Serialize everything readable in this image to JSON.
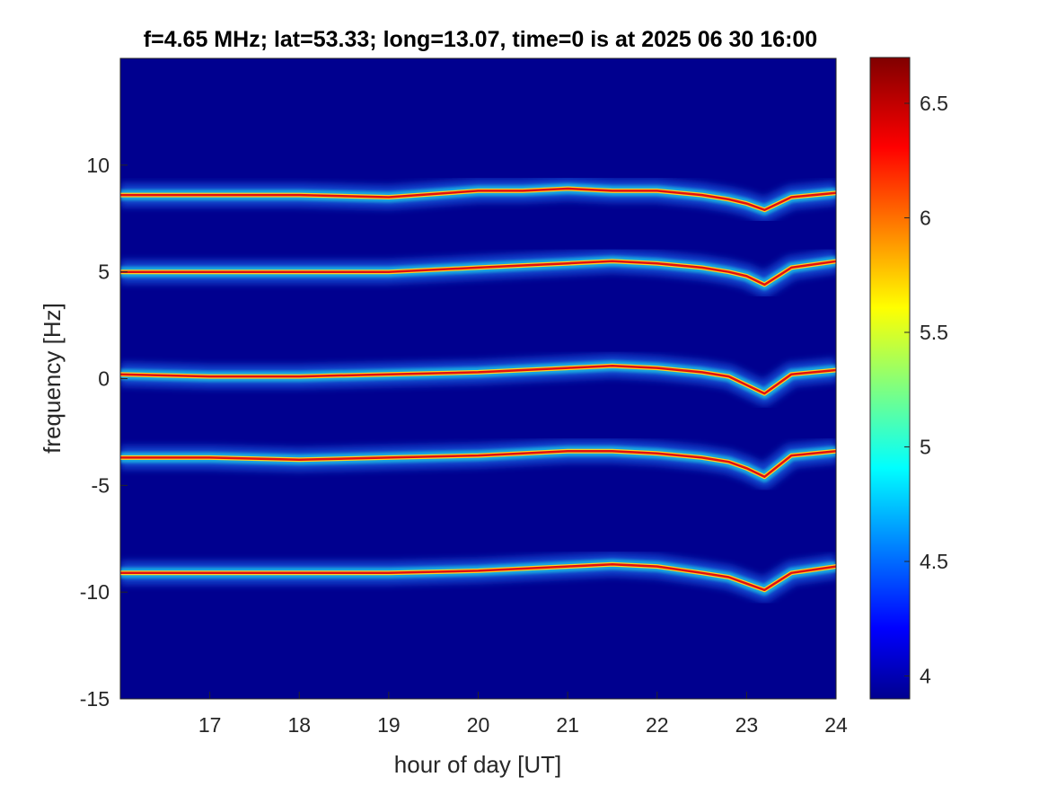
{
  "chart_data": {
    "type": "heatmap",
    "title": "f=4.65 MHz;  lat=53.33; long=13.07, time=0 is at 2025 06 30 16:00",
    "xlabel": "hour of day [UT]",
    "ylabel": "frequency [Hz]",
    "xlim": [
      16.0,
      24.0
    ],
    "ylim": [
      -15,
      15
    ],
    "x_ticks": [
      "17",
      "18",
      "19",
      "20",
      "21",
      "22",
      "23",
      "24"
    ],
    "y_ticks": [
      "10",
      "5",
      "0",
      "-5",
      "-10",
      "-15"
    ],
    "colorbar": {
      "range": [
        3.9,
        6.7
      ],
      "ticks": [
        "6.5",
        "6",
        "5.5",
        "5",
        "4.5",
        "4"
      ],
      "colormap": "jet"
    },
    "series": [
      {
        "x": [
          16.0,
          17.0,
          18.0,
          19.0,
          20.0,
          20.5,
          21.0,
          21.5,
          22.0,
          22.5,
          22.8,
          23.0,
          23.2,
          23.5,
          24.0
        ],
        "y": [
          8.6,
          8.6,
          8.6,
          8.5,
          8.8,
          8.8,
          8.9,
          8.8,
          8.8,
          8.6,
          8.4,
          8.2,
          7.9,
          8.5,
          8.7
        ]
      },
      {
        "x": [
          16.0,
          17.0,
          18.0,
          19.0,
          20.0,
          20.5,
          21.0,
          21.5,
          22.0,
          22.5,
          22.8,
          23.0,
          23.2,
          23.5,
          24.0
        ],
        "y": [
          5.0,
          5.0,
          5.0,
          5.0,
          5.2,
          5.3,
          5.4,
          5.5,
          5.4,
          5.2,
          5.0,
          4.8,
          4.4,
          5.2,
          5.5
        ]
      },
      {
        "x": [
          16.0,
          17.0,
          18.0,
          19.0,
          20.0,
          20.5,
          21.0,
          21.5,
          22.0,
          22.5,
          22.8,
          23.0,
          23.2,
          23.5,
          24.0
        ],
        "y": [
          0.2,
          0.1,
          0.1,
          0.2,
          0.3,
          0.4,
          0.5,
          0.6,
          0.5,
          0.3,
          0.1,
          -0.3,
          -0.7,
          0.2,
          0.4
        ]
      },
      {
        "x": [
          16.0,
          17.0,
          18.0,
          19.0,
          20.0,
          20.5,
          21.0,
          21.5,
          22.0,
          22.5,
          22.8,
          23.0,
          23.2,
          23.5,
          24.0
        ],
        "y": [
          -3.7,
          -3.7,
          -3.8,
          -3.7,
          -3.6,
          -3.5,
          -3.4,
          -3.4,
          -3.5,
          -3.7,
          -3.9,
          -4.2,
          -4.6,
          -3.6,
          -3.4
        ]
      },
      {
        "x": [
          16.0,
          17.0,
          18.0,
          19.0,
          20.0,
          20.5,
          21.0,
          21.5,
          22.0,
          22.5,
          22.8,
          23.0,
          23.2,
          23.5,
          24.0
        ],
        "y": [
          -9.1,
          -9.1,
          -9.1,
          -9.1,
          -9.0,
          -8.9,
          -8.8,
          -8.7,
          -8.8,
          -9.1,
          -9.3,
          -9.6,
          -9.9,
          -9.1,
          -8.8
        ]
      }
    ]
  }
}
